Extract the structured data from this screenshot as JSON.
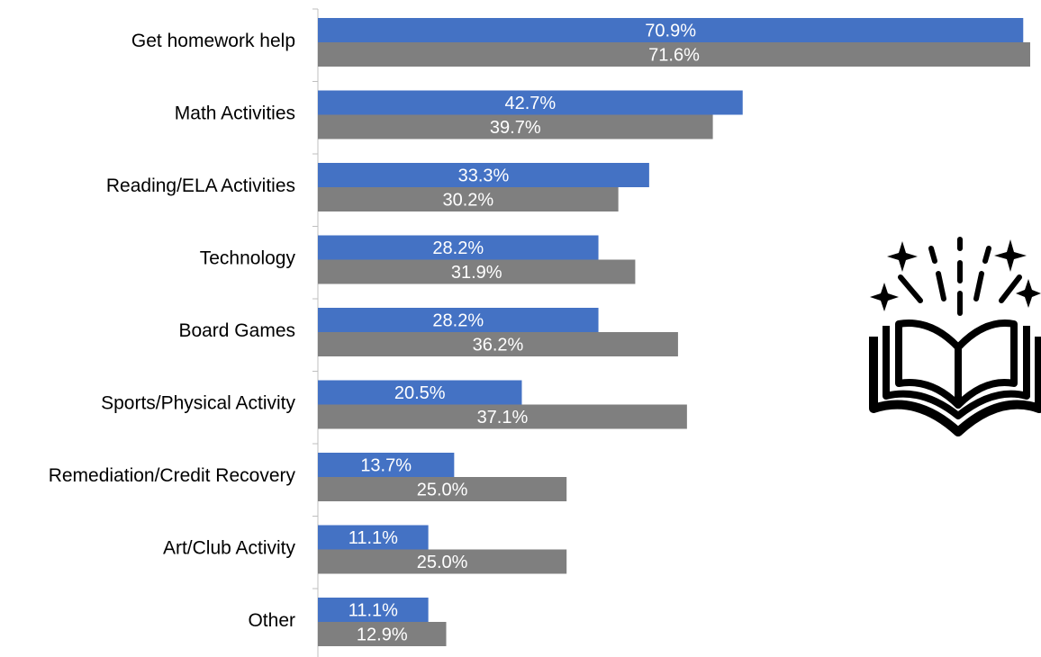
{
  "chart_data": {
    "type": "bar",
    "orientation": "horizontal",
    "categories": [
      "Get homework help",
      "Math Activities",
      "Reading/ELA Activities",
      "Technology",
      "Board Games",
      "Sports/Physical Activity",
      "Remediation/Credit Recovery",
      "Art/Club Activity",
      "Other"
    ],
    "series": [
      {
        "color": "#4472C4",
        "values": [
          70.9,
          42.7,
          33.3,
          28.2,
          28.2,
          20.5,
          13.7,
          11.1,
          11.1
        ],
        "labels": [
          "70.9%",
          "42.7%",
          "33.3%",
          "28.2%",
          "28.2%",
          "20.5%",
          "13.7%",
          "11.1%",
          "11.1%"
        ]
      },
      {
        "color": "#7F7F7F",
        "values": [
          71.6,
          39.7,
          30.2,
          31.9,
          36.2,
          37.1,
          25.0,
          25.0,
          12.9
        ],
        "labels": [
          "71.6%",
          "39.7%",
          "30.2%",
          "31.9%",
          "36.2%",
          "37.1%",
          "25.0%",
          "25.0%",
          "12.9%"
        ]
      }
    ],
    "title": "",
    "xlabel": "",
    "ylabel": "",
    "xlim": [
      0,
      72
    ],
    "grid": false,
    "legend": "none",
    "value_labels": "inside-center"
  },
  "decoration": {
    "icon": "open-book-sparkles-icon"
  }
}
